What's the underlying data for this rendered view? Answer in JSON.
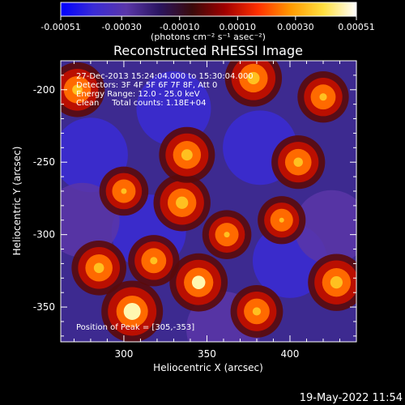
{
  "chart_data": {
    "type": "heatmap",
    "title": "Reconstructed RHESSI Image",
    "xlabel": "Heliocentric X (arcsec)",
    "ylabel": "Heliocentric Y (arcsec)",
    "xlim": [
      262,
      440
    ],
    "ylim": [
      -374,
      -180
    ],
    "x_ticks": [
      300,
      350,
      400
    ],
    "y_ticks": [
      -200,
      -250,
      -300,
      -350
    ],
    "annotations": [
      "27-Dec-2013 15:24:04.000 to 15:30:04.000",
      "Detectors: 3F 4F 5F 6F 7F 8F, Att 0",
      "Energy Range: 12.0 - 25.0 keV",
      "Clean     Total counts: 1.18E+04",
      "Position of Peak = [305,-353]"
    ],
    "peak": {
      "x": 305,
      "y": -353
    },
    "colorbar": {
      "min": -0.00051,
      "max": 0.00051,
      "tick_labels": [
        "-0.00051",
        "-0.00030",
        "-0.00010",
        "0.00010",
        "0.00030",
        "0.00051"
      ],
      "unit_label": "(photons cm⁻² s⁻¹ asec⁻²)",
      "colors": [
        "#0000ff",
        "#3a2bd6",
        "#5a36a8",
        "#2a1560",
        "#3a0a0a",
        "#a00000",
        "#ff3000",
        "#ff9a00",
        "#ffe040",
        "#ffffff"
      ]
    },
    "bright_regions": [
      {
        "x": 305,
        "y": -353,
        "level": 1.0
      },
      {
        "x": 345,
        "y": -333,
        "level": 0.85
      },
      {
        "x": 335,
        "y": -278,
        "level": 0.8
      },
      {
        "x": 338,
        "y": -245,
        "level": 0.75
      },
      {
        "x": 285,
        "y": -323,
        "level": 0.7
      },
      {
        "x": 428,
        "y": -333,
        "level": 0.8
      },
      {
        "x": 378,
        "y": -192,
        "level": 0.8
      },
      {
        "x": 272,
        "y": -200,
        "level": 0.7
      },
      {
        "x": 380,
        "y": -353,
        "level": 0.6
      },
      {
        "x": 405,
        "y": -250,
        "level": 0.65
      },
      {
        "x": 318,
        "y": -318,
        "level": 0.55
      },
      {
        "x": 420,
        "y": -205,
        "level": 0.55
      },
      {
        "x": 300,
        "y": -270,
        "level": 0.45
      },
      {
        "x": 362,
        "y": -300,
        "level": 0.45
      },
      {
        "x": 395,
        "y": -290,
        "level": 0.4
      }
    ],
    "dim_regions": [
      {
        "x": 330,
        "y": -213,
        "level": -0.85
      },
      {
        "x": 315,
        "y": -298,
        "level": -0.8
      },
      {
        "x": 400,
        "y": -318,
        "level": -0.75
      },
      {
        "x": 382,
        "y": -240,
        "level": -0.8
      },
      {
        "x": 280,
        "y": -245,
        "level": -0.7
      },
      {
        "x": 360,
        "y": -365,
        "level": -0.6
      },
      {
        "x": 275,
        "y": -290,
        "level": -0.55
      },
      {
        "x": 425,
        "y": -295,
        "level": -0.5
      }
    ]
  },
  "footer": {
    "timestamp": "19-May-2022 11:54"
  }
}
